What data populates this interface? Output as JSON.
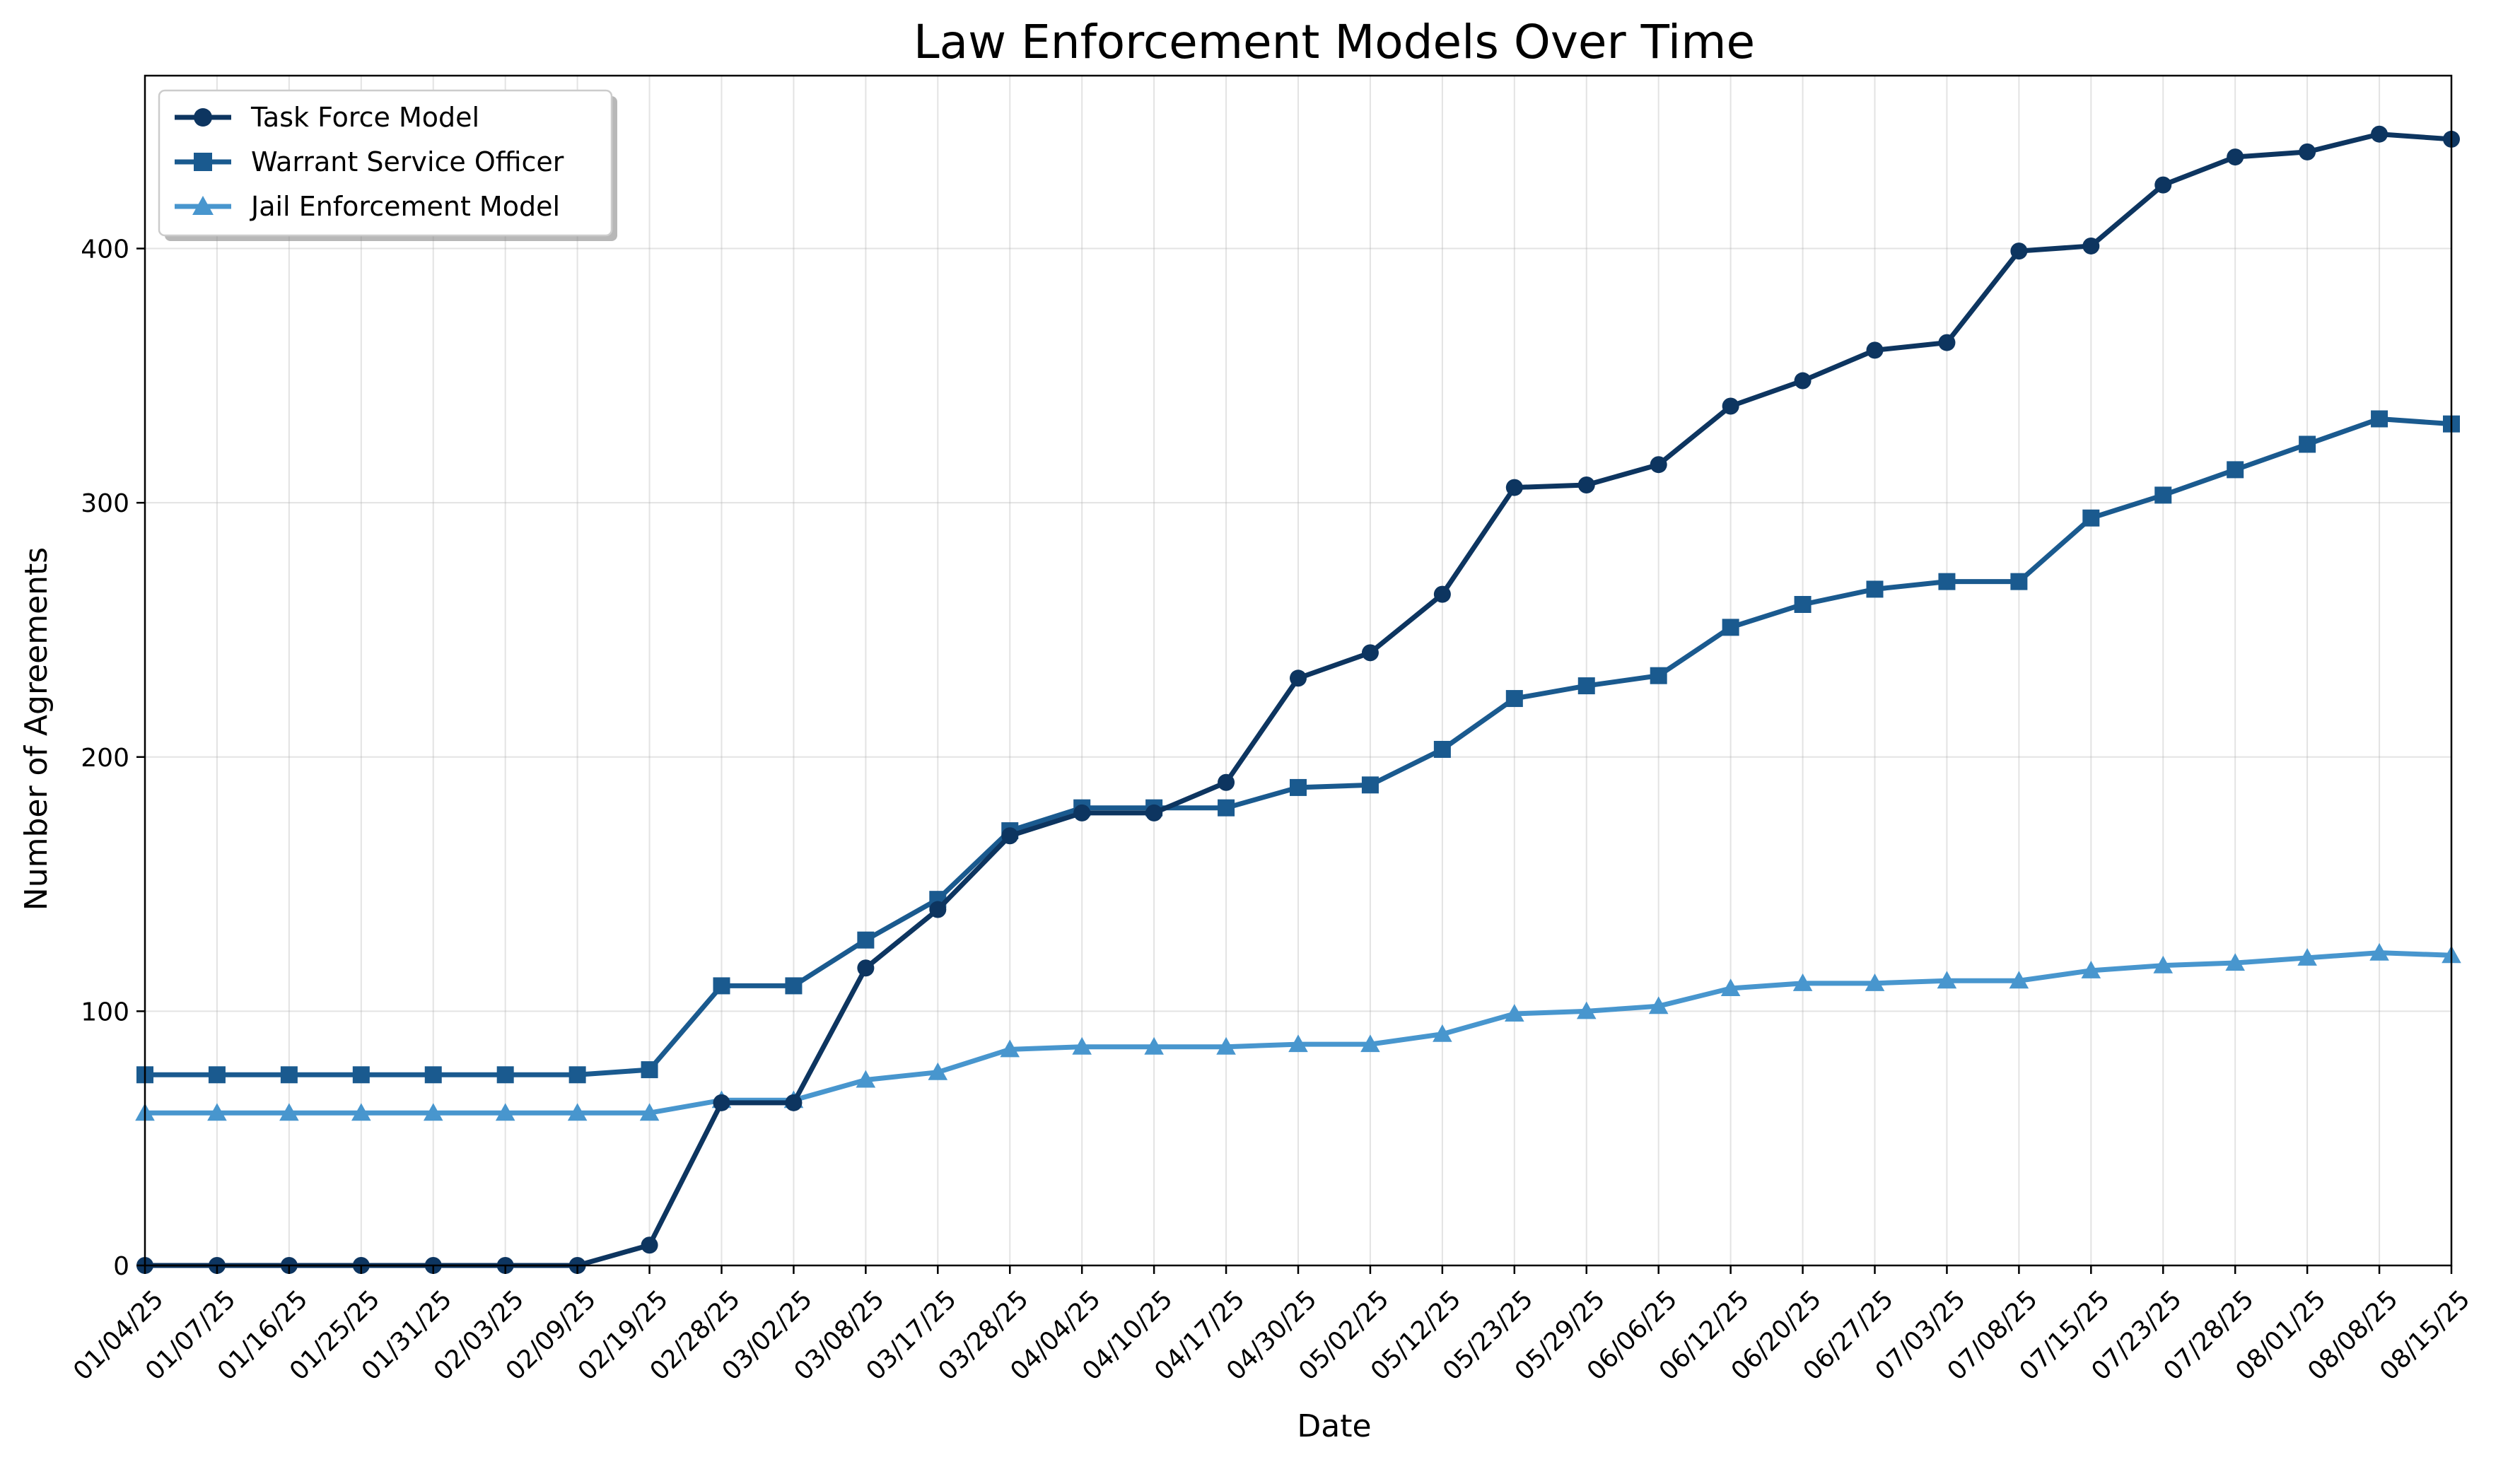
{
  "chart_data": {
    "type": "line",
    "title": "Law Enforcement Models Over Time",
    "xlabel": "Date",
    "ylabel": "Number of Agreements",
    "ylim": [
      0,
      468
    ],
    "yticks": [
      0,
      100,
      200,
      300,
      400
    ],
    "grid": true,
    "legend_position": "top-left",
    "categories": [
      "01/04/25",
      "01/07/25",
      "01/16/25",
      "01/25/25",
      "01/31/25",
      "02/03/25",
      "02/09/25",
      "02/19/25",
      "02/28/25",
      "03/02/25",
      "03/08/25",
      "03/17/25",
      "03/28/25",
      "04/04/25",
      "04/10/25",
      "04/17/25",
      "04/30/25",
      "05/02/25",
      "05/12/25",
      "05/23/25",
      "05/29/25",
      "06/06/25",
      "06/12/25",
      "06/20/25",
      "06/27/25",
      "07/03/25",
      "07/08/25",
      "07/15/25",
      "07/23/25",
      "07/28/25",
      "08/01/25",
      "08/08/25",
      "08/15/25"
    ],
    "series": [
      {
        "name": "Task Force Model",
        "color": "#0d3560",
        "marker": "circle",
        "values": [
          0,
          0,
          0,
          0,
          0,
          0,
          0,
          8,
          64,
          64,
          117,
          140,
          169,
          178,
          178,
          190,
          231,
          241,
          264,
          306,
          307,
          315,
          338,
          348,
          360,
          363,
          399,
          401,
          425,
          436,
          438,
          445,
          443
        ]
      },
      {
        "name": "Warrant Service Officer",
        "color": "#1a5a8f",
        "marker": "square",
        "values": [
          75,
          75,
          75,
          75,
          75,
          75,
          75,
          77,
          110,
          110,
          128,
          144,
          171,
          180,
          180,
          180,
          188,
          189,
          203,
          223,
          228,
          232,
          251,
          260,
          266,
          269,
          269,
          294,
          303,
          313,
          323,
          333,
          331
        ]
      },
      {
        "name": "Jail Enforcement Model",
        "color": "#4896ce",
        "marker": "triangle",
        "values": [
          60,
          60,
          60,
          60,
          60,
          60,
          60,
          60,
          65,
          65,
          73,
          76,
          85,
          86,
          86,
          86,
          87,
          87,
          91,
          99,
          100,
          102,
          109,
          111,
          111,
          112,
          112,
          116,
          118,
          119,
          121,
          123,
          122
        ]
      }
    ]
  }
}
